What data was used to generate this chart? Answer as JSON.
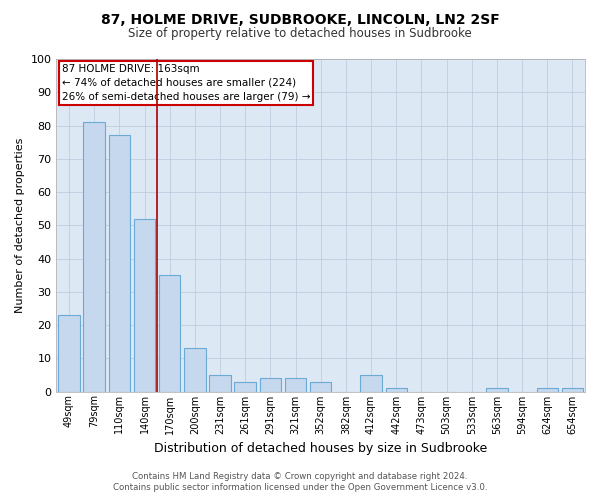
{
  "title": "87, HOLME DRIVE, SUDBROOKE, LINCOLN, LN2 2SF",
  "subtitle": "Size of property relative to detached houses in Sudbrooke",
  "xlabel": "Distribution of detached houses by size in Sudbrooke",
  "ylabel": "Number of detached properties",
  "categories": [
    "49sqm",
    "79sqm",
    "110sqm",
    "140sqm",
    "170sqm",
    "200sqm",
    "231sqm",
    "261sqm",
    "291sqm",
    "321sqm",
    "352sqm",
    "382sqm",
    "412sqm",
    "442sqm",
    "473sqm",
    "503sqm",
    "533sqm",
    "563sqm",
    "594sqm",
    "624sqm",
    "654sqm"
  ],
  "values": [
    23,
    81,
    77,
    52,
    35,
    13,
    5,
    3,
    4,
    4,
    3,
    0,
    5,
    1,
    0,
    0,
    0,
    1,
    0,
    1,
    1
  ],
  "bar_color": "#c5d8ee",
  "bar_edgecolor": "#6aaad4",
  "redline_index": 3.5,
  "annotation_line1": "87 HOLME DRIVE: 163sqm",
  "annotation_line2": "← 74% of detached houses are smaller (224)",
  "annotation_line3": "26% of semi-detached houses are larger (79) →",
  "ylim": [
    0,
    100
  ],
  "yticks": [
    0,
    10,
    20,
    30,
    40,
    50,
    60,
    70,
    80,
    90,
    100
  ],
  "annotation_box_color": "#ffffff",
  "annotation_box_edgecolor": "#cc0000",
  "footer_line1": "Contains HM Land Registry data © Crown copyright and database right 2024.",
  "footer_line2": "Contains public sector information licensed under the Open Government Licence v3.0.",
  "background_color": "#ffffff",
  "plot_bg_color": "#dde8f5",
  "grid_color": "#b8c8dc"
}
